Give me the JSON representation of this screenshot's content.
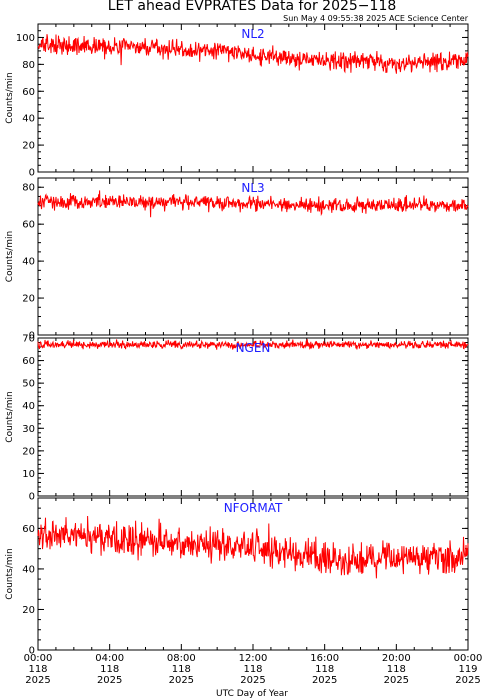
{
  "title": "LET ahead EVPRATES Data for 2025−118",
  "stamp": "Sun May  4 09:55:38 2025 ACE Science Center",
  "xlabel": "UTC Day of Year",
  "chart_data": [
    {
      "type": "line",
      "series_name": "NL2",
      "ylabel": "Counts/min",
      "ylim": [
        0,
        110
      ],
      "yticks": [
        0,
        20,
        40,
        60,
        80,
        100
      ],
      "xlim": [
        0,
        24
      ],
      "color": "#ff0000",
      "trend": [
        [
          0,
          94
        ],
        [
          4,
          93
        ],
        [
          8,
          91
        ],
        [
          11,
          89
        ],
        [
          13,
          85
        ],
        [
          16,
          83
        ],
        [
          20,
          81
        ],
        [
          24,
          83
        ]
      ],
      "noise": 5
    },
    {
      "type": "line",
      "series_name": "NL3",
      "ylabel": "Counts/min",
      "ylim": [
        0,
        85
      ],
      "yticks": [
        0,
        20,
        40,
        60,
        80
      ],
      "xlim": [
        0,
        24
      ],
      "color": "#ff0000",
      "trend": [
        [
          0,
          72
        ],
        [
          8,
          72
        ],
        [
          12,
          71
        ],
        [
          16,
          70
        ],
        [
          20,
          70
        ],
        [
          24,
          70
        ]
      ],
      "noise": 3
    },
    {
      "type": "line",
      "series_name": "NGEN",
      "ylabel": "Counts/min",
      "ylim": [
        0,
        70
      ],
      "yticks": [
        0,
        10,
        20,
        30,
        40,
        50,
        60,
        70
      ],
      "xlim": [
        0,
        24
      ],
      "color": "#ff0000",
      "trend": [
        [
          0,
          67
        ],
        [
          24,
          67
        ]
      ],
      "noise": 1.2
    },
    {
      "type": "line",
      "series_name": "NFORMAT",
      "ylabel": "Counts/min",
      "ylim": [
        0,
        75
      ],
      "yticks": [
        0,
        20,
        40,
        60
      ],
      "xlim": [
        0,
        24
      ],
      "color": "#ff0000",
      "trend": [
        [
          0,
          58
        ],
        [
          4,
          55
        ],
        [
          8,
          53
        ],
        [
          12,
          50
        ],
        [
          14,
          48
        ],
        [
          16,
          45
        ],
        [
          20,
          44
        ],
        [
          24,
          46
        ]
      ],
      "noise": 6
    }
  ],
  "xticks": [
    {
      "time": "00:00",
      "doy": "118",
      "year": "2025"
    },
    {
      "time": "04:00",
      "doy": "118",
      "year": "2025"
    },
    {
      "time": "08:00",
      "doy": "118",
      "year": "2025"
    },
    {
      "time": "12:00",
      "doy": "118",
      "year": "2025"
    },
    {
      "time": "16:00",
      "doy": "118",
      "year": "2025"
    },
    {
      "time": "20:00",
      "doy": "118",
      "year": "2025"
    },
    {
      "time": "00:00",
      "doy": "119",
      "year": "2025"
    }
  ]
}
